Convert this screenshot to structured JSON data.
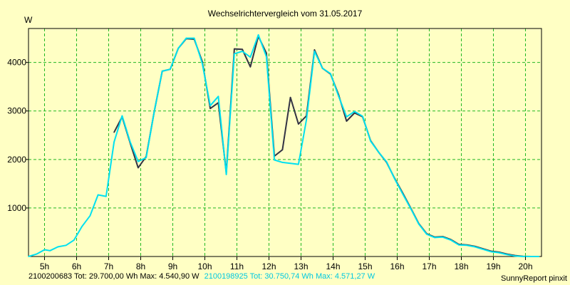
{
  "chart_data": {
    "type": "line",
    "title": "Wechselrichtervergleich vom 31.05.2017",
    "ylabel": "W",
    "xlabel": "",
    "x_range": [
      4.5,
      20.5
    ],
    "ylim": [
      0,
      4700
    ],
    "grid": true,
    "x_ticks": [
      {
        "x": 5,
        "label": "5h"
      },
      {
        "x": 6,
        "label": "6h"
      },
      {
        "x": 7,
        "label": "7h"
      },
      {
        "x": 8,
        "label": "8h"
      },
      {
        "x": 9,
        "label": "9h"
      },
      {
        "x": 10,
        "label": "10h"
      },
      {
        "x": 11,
        "label": "11h"
      },
      {
        "x": 12,
        "label": "12h"
      },
      {
        "x": 13,
        "label": "13h"
      },
      {
        "x": 14,
        "label": "14h"
      },
      {
        "x": 15,
        "label": "15h"
      },
      {
        "x": 16,
        "label": "16h"
      },
      {
        "x": 17,
        "label": "17h"
      },
      {
        "x": 18,
        "label": "18h"
      },
      {
        "x": 19,
        "label": "19h"
      },
      {
        "x": 20,
        "label": "20h"
      }
    ],
    "y_ticks": [
      {
        "y": 1000,
        "label": "1000"
      },
      {
        "y": 2000,
        "label": "2000"
      },
      {
        "y": 3000,
        "label": "3000"
      },
      {
        "y": 4000,
        "label": "4000"
      }
    ],
    "series": [
      {
        "name": "2100200683",
        "color": "#333344",
        "points": [
          [
            7.17,
            2560
          ],
          [
            7.42,
            2880
          ],
          [
            7.67,
            2340
          ],
          [
            7.92,
            1830
          ],
          [
            8.17,
            2060
          ],
          [
            8.42,
            2980
          ],
          [
            8.67,
            3820
          ],
          [
            8.92,
            3860
          ],
          [
            9.17,
            4290
          ],
          [
            9.42,
            4490
          ],
          [
            9.67,
            4480
          ],
          [
            9.92,
            4020
          ],
          [
            10.17,
            3050
          ],
          [
            10.42,
            3170
          ],
          [
            10.67,
            1730
          ],
          [
            10.92,
            4280
          ],
          [
            11.17,
            4270
          ],
          [
            11.42,
            3910
          ],
          [
            11.67,
            4540
          ],
          [
            11.92,
            4190
          ],
          [
            12.17,
            2070
          ],
          [
            12.42,
            2200
          ],
          [
            12.67,
            3280
          ],
          [
            12.92,
            2730
          ],
          [
            13.17,
            2900
          ],
          [
            13.42,
            4260
          ],
          [
            13.67,
            3880
          ],
          [
            13.92,
            3760
          ],
          [
            14.17,
            3340
          ],
          [
            14.42,
            2790
          ],
          [
            14.67,
            2960
          ],
          [
            14.92,
            2880
          ],
          [
            15.17,
            2390
          ],
          [
            15.42,
            2150
          ],
          [
            15.67,
            1940
          ],
          [
            15.92,
            1610
          ],
          [
            16.17,
            1310
          ],
          [
            16.42,
            1000
          ],
          [
            16.67,
            680
          ],
          [
            16.92,
            470
          ],
          [
            17.17,
            400
          ],
          [
            17.42,
            410
          ],
          [
            17.67,
            350
          ],
          [
            17.92,
            250
          ],
          [
            18.17,
            240
          ],
          [
            18.42,
            210
          ],
          [
            18.67,
            160
          ],
          [
            18.92,
            110
          ],
          [
            19.17,
            90
          ],
          [
            19.42,
            50
          ],
          [
            19.67,
            20
          ],
          [
            19.92,
            5
          ],
          [
            20.17,
            0
          ],
          [
            20.42,
            0
          ]
        ]
      },
      {
        "name": "2100198925",
        "color": "#00e0f0",
        "points": [
          [
            4.5,
            0
          ],
          [
            4.75,
            50
          ],
          [
            5.0,
            140
          ],
          [
            5.17,
            120
          ],
          [
            5.42,
            200
          ],
          [
            5.67,
            230
          ],
          [
            5.92,
            340
          ],
          [
            6.17,
            620
          ],
          [
            6.42,
            840
          ],
          [
            6.67,
            1270
          ],
          [
            6.92,
            1240
          ],
          [
            7.17,
            2360
          ],
          [
            7.42,
            2900
          ],
          [
            7.67,
            2360
          ],
          [
            7.92,
            1960
          ],
          [
            8.17,
            2040
          ],
          [
            8.42,
            2980
          ],
          [
            8.67,
            3820
          ],
          [
            8.92,
            3860
          ],
          [
            9.17,
            4290
          ],
          [
            9.42,
            4500
          ],
          [
            9.67,
            4500
          ],
          [
            9.92,
            3980
          ],
          [
            10.17,
            3110
          ],
          [
            10.42,
            3300
          ],
          [
            10.67,
            1690
          ],
          [
            10.92,
            4180
          ],
          [
            11.17,
            4230
          ],
          [
            11.42,
            4110
          ],
          [
            11.67,
            4570
          ],
          [
            11.92,
            4120
          ],
          [
            12.17,
            1990
          ],
          [
            12.42,
            1940
          ],
          [
            12.67,
            1920
          ],
          [
            12.92,
            1900
          ],
          [
            13.17,
            2820
          ],
          [
            13.42,
            4230
          ],
          [
            13.67,
            3880
          ],
          [
            13.92,
            3770
          ],
          [
            14.17,
            3310
          ],
          [
            14.42,
            2880
          ],
          [
            14.67,
            2990
          ],
          [
            14.92,
            2890
          ],
          [
            15.17,
            2380
          ],
          [
            15.42,
            2150
          ],
          [
            15.67,
            1950
          ],
          [
            15.92,
            1600
          ],
          [
            16.17,
            1290
          ],
          [
            16.42,
            990
          ],
          [
            16.67,
            670
          ],
          [
            16.92,
            460
          ],
          [
            17.17,
            390
          ],
          [
            17.42,
            400
          ],
          [
            17.67,
            340
          ],
          [
            17.92,
            240
          ],
          [
            18.17,
            230
          ],
          [
            18.42,
            200
          ],
          [
            18.67,
            150
          ],
          [
            18.92,
            100
          ],
          [
            19.17,
            80
          ],
          [
            19.42,
            40
          ],
          [
            19.67,
            10
          ],
          [
            19.92,
            0
          ],
          [
            20.17,
            0
          ],
          [
            20.42,
            0
          ]
        ]
      }
    ]
  },
  "footer": {
    "left_text": "2100200683 Tot: 29.700,00 Wh Max: 4.540,90 W",
    "right_text": "2100198925 Tot: 30.750,74 Wh Max: 4.571,27 W",
    "brand": "SunnyReport pinxit"
  }
}
